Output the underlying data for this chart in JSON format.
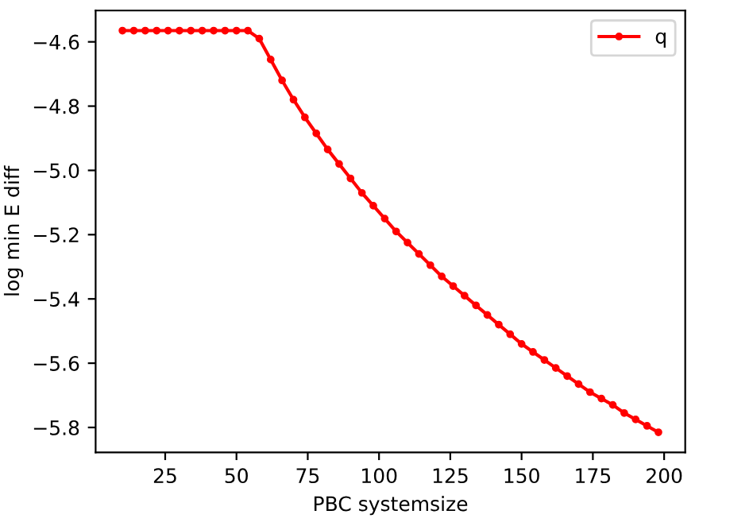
{
  "chart_data": {
    "type": "line",
    "xlabel": "PBC systemsize",
    "ylabel": "log min E diff",
    "x": [
      10,
      14,
      18,
      22,
      26,
      30,
      34,
      38,
      42,
      46,
      50,
      54,
      58,
      62,
      66,
      70,
      74,
      78,
      82,
      86,
      90,
      94,
      98,
      102,
      106,
      110,
      114,
      118,
      122,
      126,
      130,
      134,
      138,
      142,
      146,
      150,
      154,
      158,
      162,
      166,
      170,
      174,
      178,
      182,
      186,
      190,
      194,
      198
    ],
    "series": [
      {
        "name": "q",
        "color": "#ff0000",
        "values": [
          -4.565,
          -4.565,
          -4.565,
          -4.565,
          -4.565,
          -4.565,
          -4.565,
          -4.565,
          -4.565,
          -4.565,
          -4.565,
          -4.565,
          -4.59,
          -4.655,
          -4.72,
          -4.78,
          -4.835,
          -4.885,
          -4.935,
          -4.98,
          -5.025,
          -5.07,
          -5.11,
          -5.15,
          -5.19,
          -5.225,
          -5.26,
          -5.295,
          -5.33,
          -5.36,
          -5.39,
          -5.42,
          -5.45,
          -5.48,
          -5.51,
          -5.54,
          -5.565,
          -5.59,
          -5.615,
          -5.64,
          -5.665,
          -5.69,
          -5.71,
          -5.73,
          -5.755,
          -5.775,
          -5.795,
          -5.815
        ]
      }
    ],
    "xlim": [
      0.6,
      207.4
    ],
    "ylim": [
      -5.8775,
      -4.5025
    ],
    "xticks": [
      25,
      50,
      75,
      100,
      125,
      150,
      175,
      200
    ],
    "yticks": [
      {
        "value": -5.8,
        "label": "−5.8"
      },
      {
        "value": -5.6,
        "label": "−5.6"
      },
      {
        "value": -5.4,
        "label": "−5.4"
      },
      {
        "value": -5.2,
        "label": "−5.2"
      },
      {
        "value": -5.0,
        "label": "−5.0"
      },
      {
        "value": -4.8,
        "label": "−4.8"
      },
      {
        "value": -4.6,
        "label": "−4.6"
      }
    ],
    "marker": "circle",
    "line_style": "solid",
    "legend": "top right",
    "grid": false
  }
}
